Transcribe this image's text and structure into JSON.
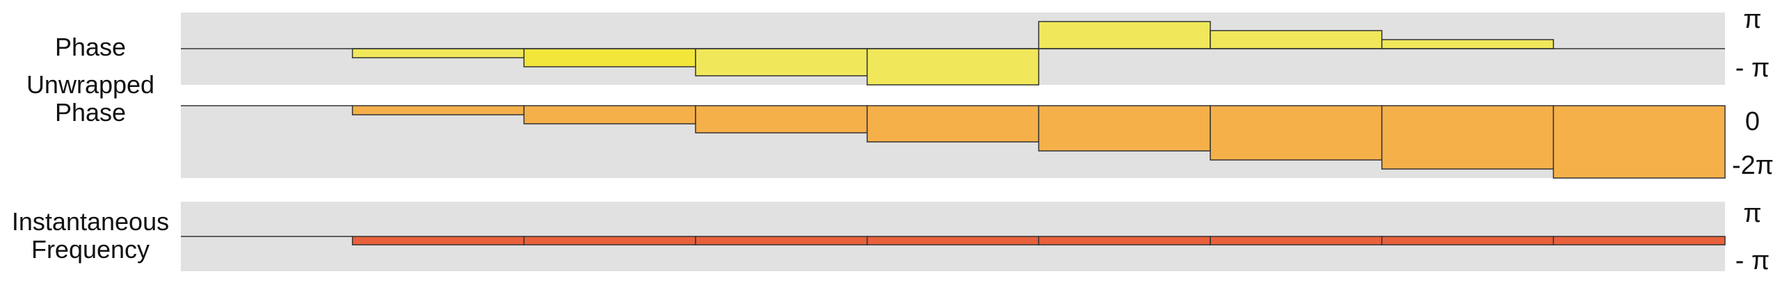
{
  "rows": [
    {
      "label_lines": [
        "Phase"
      ],
      "axis_top": "π",
      "axis_bottom": "- π",
      "color": "#f0e85a",
      "accent": "#f3e63a"
    },
    {
      "label_lines": [
        "Unwrapped",
        "Phase"
      ],
      "axis_top": "0",
      "axis_bottom": "-2π",
      "color": "#f5b04a"
    },
    {
      "label_lines": [
        "Instantaneous",
        "Frequency"
      ],
      "axis_top": "π",
      "axis_bottom": "- π",
      "color": "#e8603c"
    }
  ],
  "background_color": "#e1e1e1",
  "chart_data": [
    {
      "type": "bar",
      "values": [
        0,
        -0.25,
        -0.5,
        -0.75,
        -1.0,
        0.75,
        0.5,
        0.25,
        0
      ],
      "ylim": [
        -1,
        1
      ]
    },
    {
      "type": "bar",
      "values": [
        0,
        -0.125,
        -0.25,
        -0.375,
        -0.5,
        -0.625,
        -0.75,
        -0.875,
        -1.0
      ],
      "ylim": [
        -1,
        0
      ]
    },
    {
      "type": "bar",
      "values": [
        0,
        -0.25,
        -0.25,
        -0.25,
        -0.25,
        -0.25,
        -0.25,
        -0.25,
        -0.25
      ],
      "ylim": [
        -1,
        1
      ]
    }
  ]
}
